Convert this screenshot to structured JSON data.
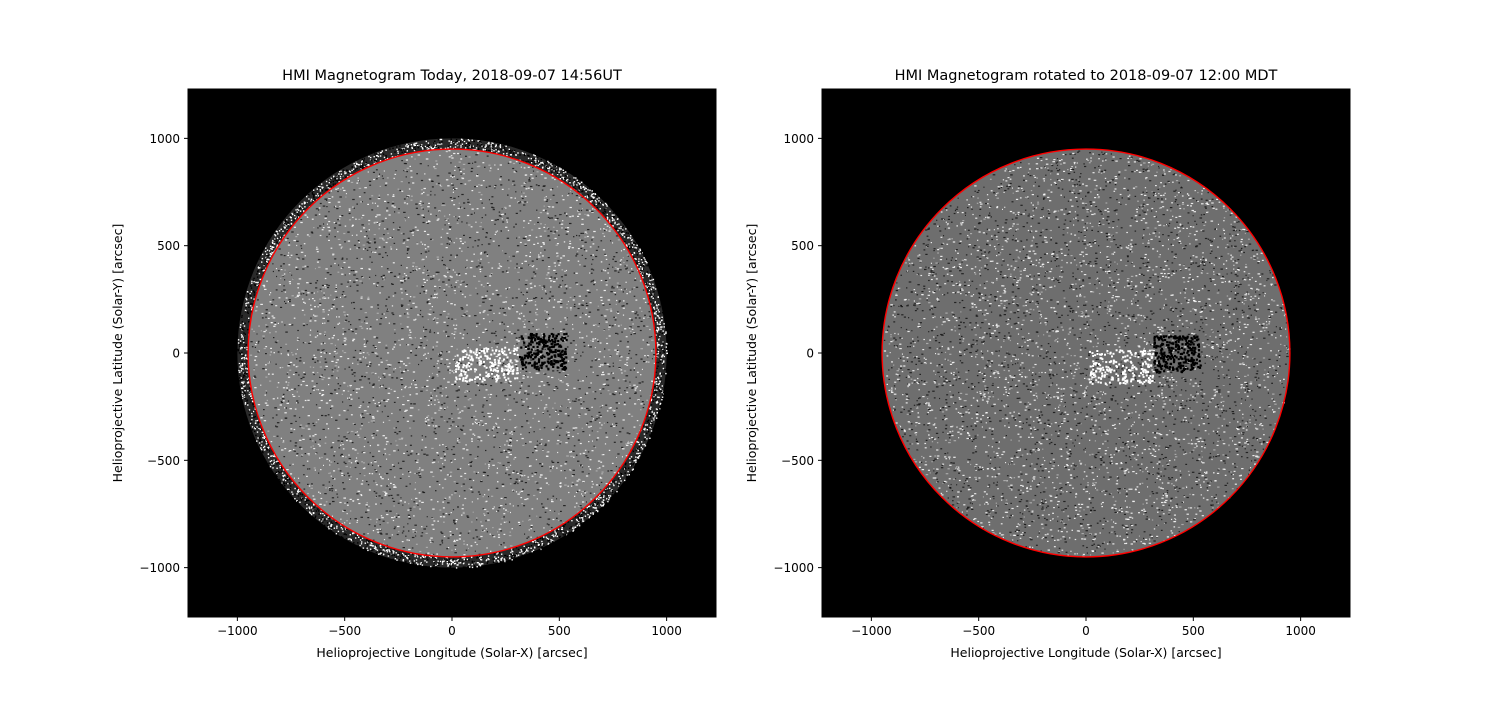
{
  "chart_data": [
    {
      "type": "heatmap",
      "title": "HMI Magnetogram Today, 2018-09-07 14:56UT",
      "xlabel": "Helioprojective Longitude (Solar-X) [arcsec]",
      "ylabel": "Helioprojective Latitude (Solar-Y) [arcsec]",
      "xlim": [
        -1230,
        1230
      ],
      "ylim": [
        -1230,
        1230
      ],
      "xticks": [
        -1000,
        -500,
        0,
        500,
        1000
      ],
      "yticks": [
        -1000,
        -500,
        0,
        500,
        1000
      ],
      "xtick_labels": [
        "−1000",
        "−500",
        "0",
        "500",
        "1000"
      ],
      "ytick_labels": [
        "−1000",
        "−500",
        "0",
        "500",
        "1000"
      ],
      "background": "#000000",
      "disk_color": "#808080",
      "limb_color": "#ff0000",
      "disk_radius": 950,
      "noise_ring_outer_radius": 1000,
      "active_region_center": [
        420,
        10
      ]
    },
    {
      "type": "heatmap",
      "title": "HMI Magnetogram rotated to 2018-09-07 12:00 MDT",
      "xlabel": "Helioprojective Longitude (Solar-X) [arcsec]",
      "ylabel": "Helioprojective Latitude (Solar-Y) [arcsec]",
      "xlim": [
        -1230,
        1230
      ],
      "ylim": [
        -1230,
        1230
      ],
      "xticks": [
        -1000,
        -500,
        0,
        500,
        1000
      ],
      "yticks": [
        -1000,
        -500,
        0,
        500,
        1000
      ],
      "xtick_labels": [
        "−1000",
        "−500",
        "0",
        "500",
        "1000"
      ],
      "ytick_labels": [
        "−1000",
        "−500",
        "0",
        "500",
        "1000"
      ],
      "background": "#000000",
      "disk_color": "#6e6e6e",
      "limb_color": "#ff0000",
      "disk_radius": 950,
      "noise_ring_outer_radius": 950,
      "active_region_center": [
        420,
        0
      ]
    }
  ]
}
